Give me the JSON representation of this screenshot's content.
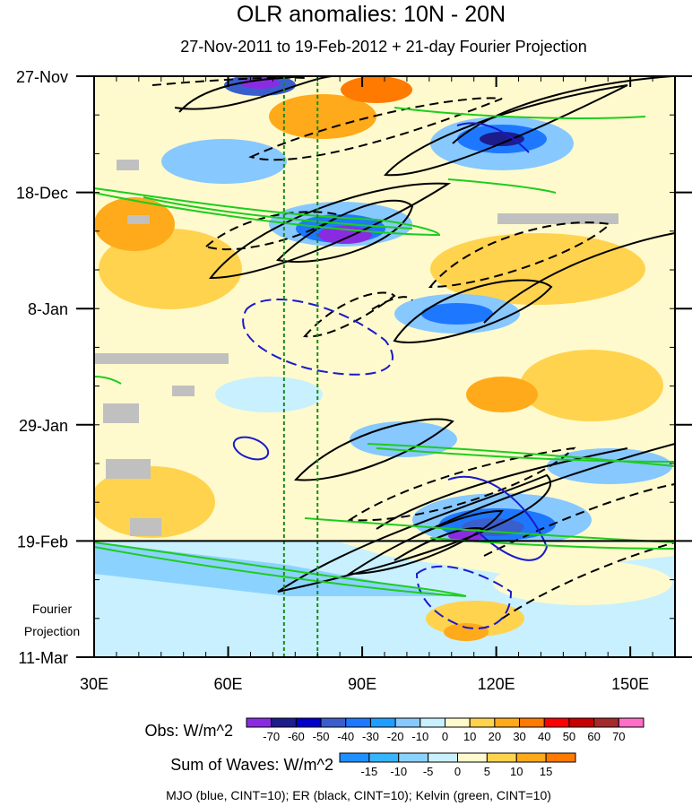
{
  "chart_data": {
    "type": "heatmap",
    "title": "OLR anomalies: 10N - 20N",
    "subtitle": "27-Nov-2011 to 19-Feb-2012 + 21-day Fourier Projection",
    "x_axis": {
      "label": "",
      "range": [
        30,
        160
      ],
      "ticks": [
        30,
        60,
        90,
        120,
        150
      ],
      "tick_labels": [
        "30E",
        "60E",
        "90E",
        "120E",
        "150E"
      ]
    },
    "y_axis": {
      "label": "",
      "range_days": [
        0,
        105
      ],
      "ticks_days": [
        0,
        21,
        42,
        63,
        84,
        105
      ],
      "tick_labels": [
        "27-Nov",
        "18-Dec",
        "8-Jan",
        "29-Jan",
        "19-Feb",
        "11-Mar"
      ]
    },
    "observation_end_day": 84,
    "projection_label": [
      "Fourier",
      "Projection"
    ],
    "reference_lines_lon": [
      72.5,
      80
    ],
    "colorbars": [
      {
        "label": "Obs: W/m^2",
        "levels": [
          -70,
          -60,
          -50,
          -40,
          -30,
          -20,
          -10,
          0,
          10,
          20,
          30,
          40,
          50,
          60,
          70
        ],
        "colors": [
          "#8a2be2",
          "#1c1c8c",
          "#0000cd",
          "#3a5fcd",
          "#1e78ff",
          "#1e9fff",
          "#87c8ff",
          "#c8f0ff",
          "#fffacd",
          "#ffd34d",
          "#ffaa1a",
          "#ff7a00",
          "#ff0000",
          "#c80000",
          "#a52a2a",
          "#ff6ec7"
        ]
      },
      {
        "label": "Sum of Waves: W/m^2",
        "levels": [
          -15,
          -10,
          -5,
          0,
          5,
          10,
          15
        ],
        "colors": [
          "#1e90ff",
          "#37b4ff",
          "#8cd2ff",
          "#c8f0ff",
          "#fffacd",
          "#ffd34d",
          "#ffaa1a",
          "#ff7a00"
        ]
      }
    ],
    "contours": [
      {
        "name": "MJO",
        "color": "blue",
        "cint": 10
      },
      {
        "name": "ER",
        "color": "black",
        "cint": 10
      },
      {
        "name": "Kelvin",
        "color": "green",
        "cint": 10
      }
    ],
    "footer": "MJO (blue, CINT=10); ER (black, CINT=10); Kelvin (green, CINT=10)"
  }
}
